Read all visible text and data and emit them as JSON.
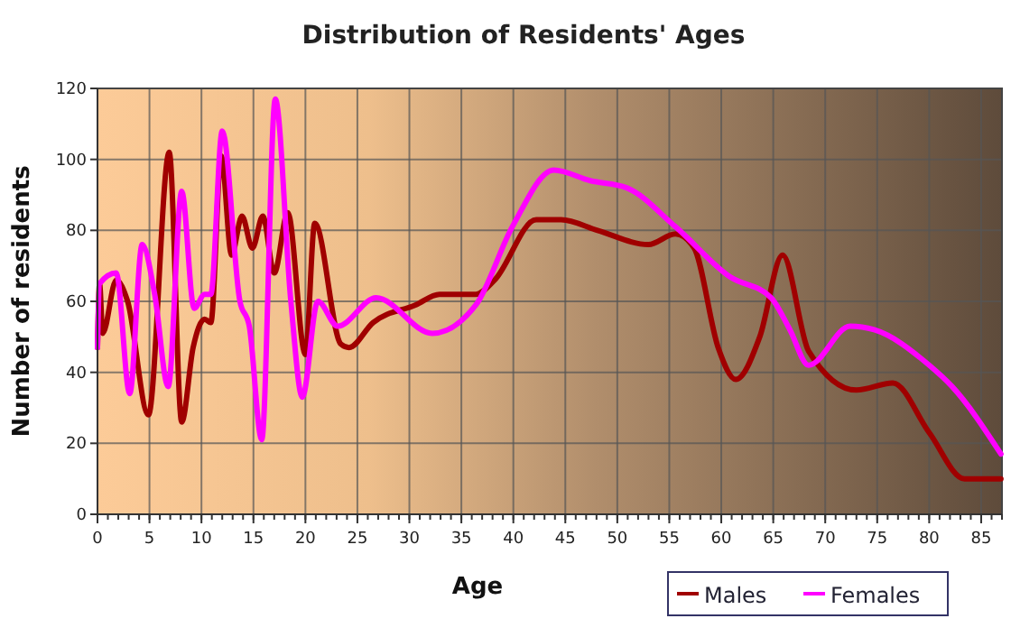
{
  "chart_data": {
    "type": "line",
    "title": "Distribution of Residents' Ages",
    "xlabel": "Age",
    "ylabel": "Number of residents",
    "xlim": [
      0,
      87
    ],
    "xticks": [
      0,
      5,
      10,
      15,
      20,
      25,
      30,
      35,
      40,
      45,
      50,
      55,
      60,
      65,
      70,
      75,
      80,
      85
    ],
    "ylim": [
      0,
      120
    ],
    "yticks": [
      0,
      20,
      40,
      60,
      80,
      100,
      120
    ],
    "grid": true,
    "legend": "bottom right",
    "marker": "none",
    "line_style": "solid",
    "series": [
      {
        "name": "Males",
        "color": "#a00000",
        "x": [
          0,
          0.2,
          0.5,
          1.8,
          2.9,
          4.9,
          6.9,
          8.1,
          9.2,
          10.3,
          10.9,
          11.9,
          12.9,
          13.9,
          14.9,
          15.9,
          17,
          18.3,
          20,
          20.9,
          23.4,
          24.2,
          26.5,
          30.6,
          32.9,
          36.4,
          38.2,
          42.2,
          44.6,
          48.1,
          53,
          55.6,
          57.4,
          59.7,
          61.4,
          63.7,
          65.9,
          68.4,
          73,
          76.5,
          80,
          83.4,
          86.9
        ],
        "values": [
          47,
          65,
          51,
          66,
          60,
          28,
          102,
          26,
          47,
          55,
          54,
          101,
          73,
          84,
          75,
          84,
          68,
          85,
          45,
          82,
          48,
          47,
          54,
          59,
          62,
          62,
          66,
          83,
          83,
          80,
          76,
          79,
          75,
          47,
          38,
          50,
          73,
          46,
          35,
          37,
          23,
          10,
          10
        ]
      },
      {
        "name": "Females",
        "color": "#ff00ff",
        "x": [
          0,
          0.2,
          1.8,
          3.1,
          4.3,
          5.5,
          6.8,
          8.1,
          9.3,
          10.3,
          10.9,
          12,
          13.7,
          14.6,
          15.8,
          17.1,
          18.6,
          19.7,
          21.2,
          23.1,
          26.8,
          32.2,
          36.4,
          39.9,
          43.9,
          47.4,
          50.9,
          55.6,
          60.8,
          64.8,
          66.6,
          68.4,
          72.4,
          74.7,
          80,
          82.2,
          86.9
        ],
        "values": [
          47,
          65,
          68,
          34,
          76,
          62,
          36,
          91,
          58,
          62,
          62,
          108,
          60,
          53,
          21,
          117,
          60,
          33,
          60,
          53,
          61,
          51,
          59,
          81,
          97,
          94,
          92,
          81,
          67,
          61,
          52,
          42,
          53,
          52,
          42,
          36,
          17
        ]
      }
    ]
  }
}
